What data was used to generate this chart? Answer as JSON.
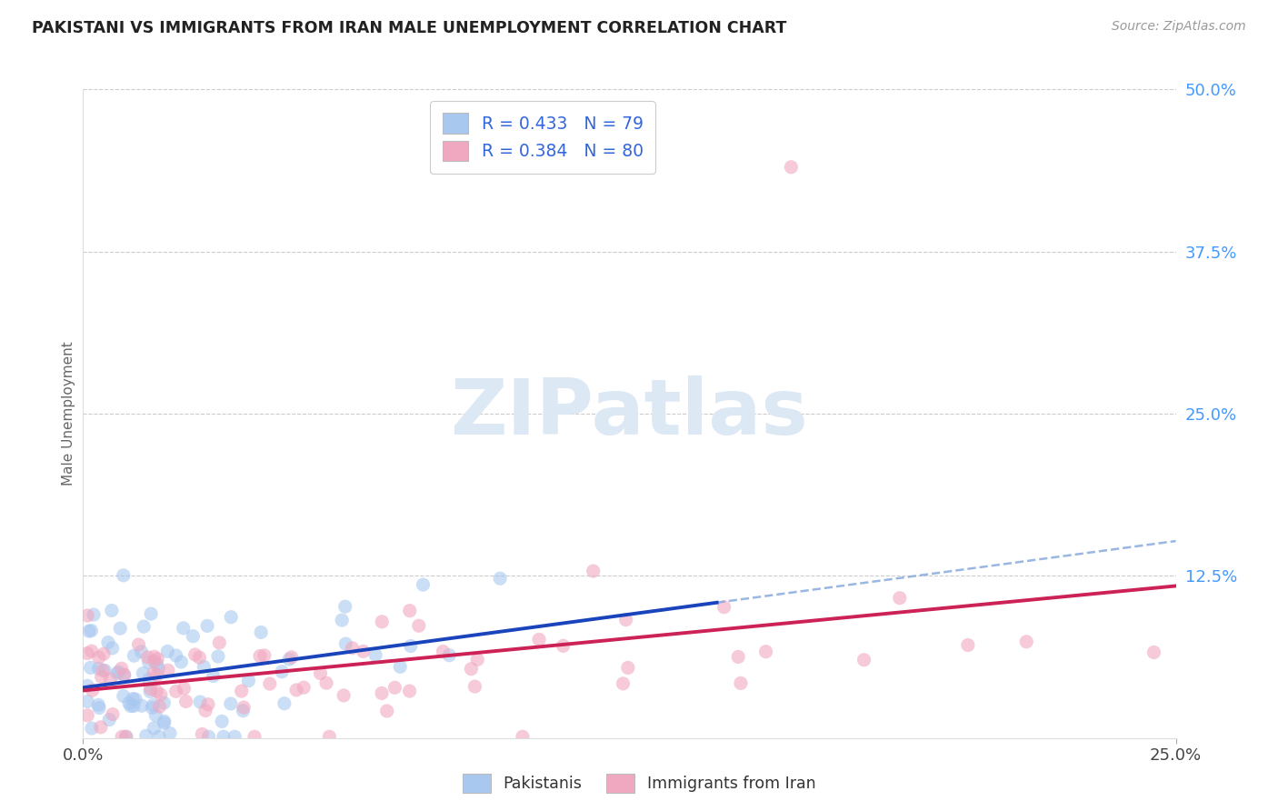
{
  "title": "PAKISTANI VS IMMIGRANTS FROM IRAN MALE UNEMPLOYMENT CORRELATION CHART",
  "source": "Source: ZipAtlas.com",
  "ylabel_label": "Male Unemployment",
  "legend_label1": "Pakistanis",
  "legend_label2": "Immigrants from Iran",
  "legend_entry1": "R = 0.433   N = 79",
  "legend_entry2": "R = 0.384   N = 80",
  "blue_scatter_color": "#a8c8f0",
  "pink_scatter_color": "#f0a8c0",
  "blue_line_color": "#1a44bb",
  "pink_line_color": "#cc2255",
  "dashed_line_color": "#88aadd",
  "watermark_color": "#dde8f5",
  "background_color": "#ffffff",
  "grid_color": "#cccccc",
  "title_color": "#222222",
  "source_color": "#999999",
  "axis_label_color": "#666666",
  "ytick_color": "#4499ff",
  "xtick_color": "#444444",
  "xlim": [
    0.0,
    0.25
  ],
  "ylim": [
    0.0,
    0.5
  ],
  "yticks": [
    0.125,
    0.25,
    0.375,
    0.5
  ],
  "ytick_labels": [
    "12.5%",
    "25.0%",
    "37.5%",
    "50.0%"
  ],
  "xticks": [
    0.0,
    0.25
  ],
  "xtick_labels": [
    "0.0%",
    "25.0%"
  ]
}
